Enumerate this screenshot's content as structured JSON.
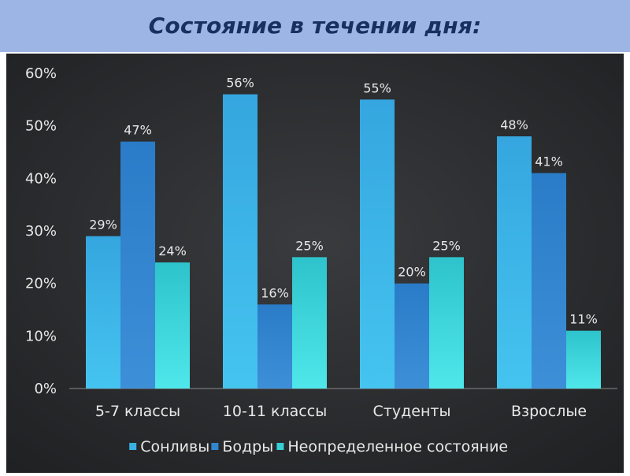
{
  "colors": {
    "title_bar": "#9cb5e4",
    "title_text": "#16305f",
    "plot_bg_dark": "#2a2b2d",
    "text": "#e8e8e8",
    "series": [
      "#39b0e3",
      "#2f86cf",
      "#35d0d6"
    ]
  },
  "chart_data": {
    "type": "bar",
    "title": "Состояние в течении дня:",
    "categories": [
      "5-7 классы",
      "10-11 классы",
      "Студенты",
      "Взрослые"
    ],
    "series": [
      {
        "name": "Сонливы",
        "values": [
          29,
          56,
          55,
          48
        ]
      },
      {
        "name": "Бодры",
        "values": [
          47,
          16,
          20,
          41
        ]
      },
      {
        "name": "Неопределенное состояние",
        "values": [
          24,
          25,
          25,
          11
        ]
      }
    ],
    "value_suffix": "%",
    "ylim": [
      0,
      60
    ],
    "yticks": [
      "0%",
      "10%",
      "20%",
      "30%",
      "40%",
      "50%",
      "60%"
    ],
    "grid": false,
    "legend_position": "bottom"
  }
}
